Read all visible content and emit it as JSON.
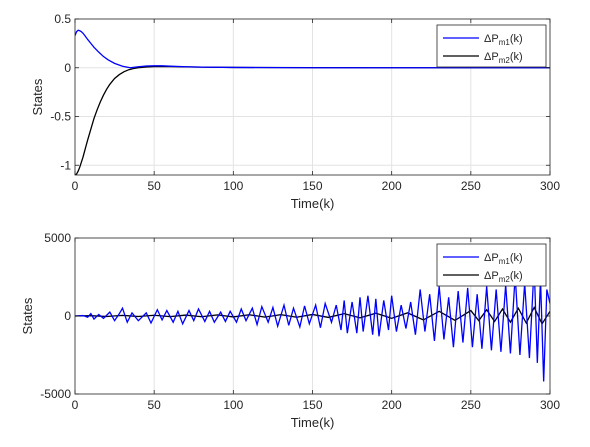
{
  "chart_data": [
    {
      "type": "line",
      "xlabel": "Time(k)",
      "ylabel": "States",
      "xlim": [
        0,
        300
      ],
      "ylim": [
        -1.1,
        0.5
      ],
      "xticks": [
        "0",
        "50",
        "100",
        "150",
        "200",
        "250",
        "300"
      ],
      "yticks": [
        "0.5",
        "0",
        "-0.5",
        "-1"
      ],
      "grid": true,
      "legend_position": "top-right",
      "series": [
        {
          "name": "ΔP_m1(k)",
          "name_base": "ΔP",
          "name_sub": "m1",
          "name_suffix": "(k)",
          "color": "#0000ff",
          "x": [
            0,
            1,
            2,
            3,
            4,
            5,
            6,
            8,
            10,
            12,
            15,
            18,
            21,
            25,
            30,
            35,
            40,
            45,
            50,
            55,
            60,
            70,
            80,
            100,
            150,
            200,
            250,
            300
          ],
          "y": [
            0.33,
            0.37,
            0.385,
            0.38,
            0.37,
            0.355,
            0.335,
            0.29,
            0.25,
            0.21,
            0.16,
            0.115,
            0.08,
            0.045,
            0.015,
            0.0,
            0.01,
            0.018,
            0.02,
            0.02,
            0.016,
            0.01,
            0.006,
            0.003,
            0.0,
            0.0,
            0.0,
            0.0
          ]
        },
        {
          "name": "ΔP_m2(k)",
          "name_base": "ΔP",
          "name_sub": "m2",
          "name_suffix": "(k)",
          "color": "#000000",
          "x": [
            0,
            1,
            2,
            3,
            4,
            5,
            6,
            7,
            8,
            10,
            12,
            14,
            16,
            18,
            20,
            22,
            25,
            28,
            31,
            34,
            37,
            40,
            45,
            50,
            60,
            70,
            80,
            100,
            150,
            200,
            250,
            300
          ],
          "y": [
            -1.1,
            -1.09,
            -1.06,
            -1.02,
            -0.97,
            -0.92,
            -0.86,
            -0.8,
            -0.74,
            -0.63,
            -0.52,
            -0.43,
            -0.35,
            -0.28,
            -0.22,
            -0.17,
            -0.11,
            -0.07,
            -0.04,
            -0.02,
            -0.008,
            0.0,
            0.008,
            0.012,
            0.012,
            0.009,
            0.006,
            0.003,
            0.001,
            0.0,
            0.0,
            0.0
          ]
        }
      ]
    },
    {
      "type": "line",
      "xlabel": "Time(k)",
      "ylabel": "States",
      "xlim": [
        0,
        300
      ],
      "ylim": [
        -5000,
        5000
      ],
      "xticks": [
        "0",
        "50",
        "100",
        "150",
        "200",
        "250",
        "300"
      ],
      "yticks": [
        "5000",
        "0",
        "-5000"
      ],
      "grid": true,
      "legend_position": "top-right",
      "series": [
        {
          "name": "ΔP_m1(k)",
          "name_base": "ΔP",
          "name_sub": "m1",
          "name_suffix": "(k)",
          "color": "#0000ff",
          "x": [
            0,
            5,
            8,
            10,
            12,
            15,
            18,
            22,
            25,
            28,
            30,
            33,
            36,
            40,
            45,
            48,
            52,
            55,
            58,
            62,
            65,
            68,
            72,
            75,
            78,
            82,
            85,
            88,
            92,
            95,
            98,
            102,
            105,
            108,
            112,
            115,
            118,
            122,
            125,
            128,
            132,
            135,
            138,
            142,
            145,
            148,
            152,
            155,
            158,
            160,
            162,
            165,
            168,
            170,
            172,
            175,
            178,
            180,
            182,
            185,
            188,
            190,
            192,
            195,
            198,
            200,
            203,
            206,
            209,
            212,
            215,
            218,
            221,
            224,
            227,
            230,
            233,
            236,
            239,
            242,
            245,
            248,
            251,
            254,
            257,
            260,
            263,
            266,
            269,
            272,
            275,
            278,
            281,
            284,
            287,
            290,
            292,
            294,
            296,
            298,
            300
          ],
          "y": [
            0,
            30,
            -80,
            150,
            -200,
            100,
            -150,
            250,
            -300,
            150,
            500,
            -400,
            200,
            -300,
            200,
            -450,
            400,
            -250,
            350,
            -400,
            300,
            -500,
            350,
            -300,
            450,
            -350,
            300,
            -400,
            250,
            -350,
            300,
            -400,
            450,
            -300,
            500,
            -550,
            600,
            -400,
            550,
            -650,
            700,
            -600,
            500,
            -700,
            650,
            -500,
            700,
            -750,
            800,
            200,
            -400,
            700,
            -900,
            1000,
            -1100,
            900,
            -1100,
            1200,
            -1000,
            1300,
            -1200,
            1100,
            -1300,
            1000,
            -900,
            1300,
            -1000,
            700,
            -800,
            900,
            -1200,
            1700,
            -1000,
            1400,
            -1600,
            1900,
            -1500,
            1200,
            -2000,
            1600,
            -1700,
            1800,
            -2000,
            1400,
            -2100,
            1900,
            -2200,
            1700,
            -2300,
            2000,
            -2400,
            2600,
            -2500,
            2100,
            -2700,
            3200,
            -3000,
            2400,
            -4200,
            1700,
            800
          ]
        },
        {
          "name": "ΔP_m2(k)",
          "name_base": "ΔP",
          "name_sub": "m2",
          "name_suffix": "(k)",
          "color": "#000000",
          "x": [
            0,
            10,
            20,
            30,
            40,
            50,
            60,
            70,
            80,
            90,
            100,
            110,
            120,
            130,
            140,
            150,
            160,
            170,
            180,
            190,
            200,
            210,
            220,
            230,
            240,
            250,
            255,
            260,
            265,
            270,
            275,
            280,
            285,
            290,
            295,
            300
          ],
          "y": [
            0,
            20,
            -30,
            40,
            -30,
            50,
            -40,
            60,
            -50,
            70,
            -60,
            80,
            -70,
            90,
            -80,
            100,
            -90,
            150,
            -120,
            180,
            -150,
            200,
            -250,
            300,
            -280,
            350,
            -300,
            400,
            -350,
            450,
            -400,
            500,
            -450,
            550,
            -500,
            300
          ]
        }
      ]
    }
  ]
}
